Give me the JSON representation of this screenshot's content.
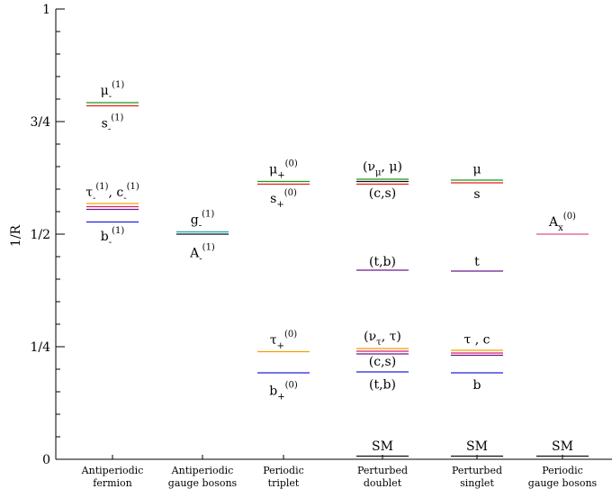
{
  "chart_data": {
    "type": "level-diagram",
    "ylabel": "1/R",
    "ylim": [
      0,
      1
    ],
    "yticks": [
      {
        "value": 0,
        "label": "0"
      },
      {
        "value": 0.25,
        "label": "1/4"
      },
      {
        "value": 0.5,
        "label": "1/2"
      },
      {
        "value": 0.75,
        "label": "3/4"
      },
      {
        "value": 1,
        "label": "1"
      }
    ],
    "minor_tick_step": 0.05,
    "grid": false,
    "columns": [
      {
        "label_line1": "Antiperiodic",
        "label_line2": "fermion",
        "levels": [
          {
            "y": 0.792,
            "color": "#1a9a1a"
          },
          {
            "y": 0.785,
            "color": "#e0201a"
          },
          {
            "y": 0.568,
            "color": "#f5a000"
          },
          {
            "y": 0.561,
            "color": "#d0206a"
          },
          {
            "y": 0.555,
            "color": "#6a1a8a"
          },
          {
            "y": 0.527,
            "color": "#2020e0"
          }
        ],
        "annotations": [
          {
            "text": "μ",
            "sub": "-",
            "sup": "(1)",
            "y": 0.81
          },
          {
            "text": "s",
            "sub": "-",
            "sup": "(1)",
            "y": 0.737
          },
          {
            "text": "τ",
            "sub": "-",
            "sup": "(1)",
            "text2": ", c",
            "sub2": "-",
            "sup2": "(1)",
            "y": 0.584
          },
          {
            "text": "b",
            "sub": "-",
            "sup": "(1)",
            "y": 0.486
          }
        ]
      },
      {
        "label_line1": "Antiperiodic",
        "label_line2": "gauge bosons",
        "levels": [
          {
            "y": 0.505,
            "color": "#00b0b0"
          },
          {
            "y": 0.5,
            "color": "#101010"
          }
        ],
        "annotations": [
          {
            "text": "g",
            "sub": "-",
            "sup": "(1)",
            "y": 0.523
          },
          {
            "text": "A",
            "sub": "-",
            "sup": "(1)",
            "y": 0.449
          }
        ]
      },
      {
        "label_line1": "Periodic",
        "label_line2": "triplet",
        "levels": [
          {
            "y": 0.617,
            "color": "#1a9a1a"
          },
          {
            "y": 0.611,
            "color": "#e0201a"
          },
          {
            "y": 0.239,
            "color": "#f5a000"
          },
          {
            "y": 0.192,
            "color": "#2020e0"
          }
        ],
        "annotations": [
          {
            "text": "μ",
            "sub": "+",
            "sup": "(0)",
            "y": 0.635
          },
          {
            "text": "s",
            "sub": "+",
            "sup": "(0)",
            "y": 0.57
          },
          {
            "text": "τ",
            "sub": "+",
            "sup": "(0)",
            "y": 0.256
          },
          {
            "text": "b",
            "sub": "+",
            "sup": "(0)",
            "y": 0.143
          }
        ]
      },
      {
        "label_line1": "Perturbed",
        "label_line2": "doublet",
        "levels": [
          {
            "y": 0.622,
            "color": "#1a9a1a"
          },
          {
            "y": 0.617,
            "color": "#101010"
          },
          {
            "y": 0.611,
            "color": "#e0201a"
          },
          {
            "y": 0.42,
            "color": "#6a1a8a"
          },
          {
            "y": 0.246,
            "color": "#f5a000"
          },
          {
            "y": 0.24,
            "color": "#d0206a"
          },
          {
            "y": 0.234,
            "color": "#6a1a8a"
          },
          {
            "y": 0.194,
            "color": "#2020e0"
          },
          {
            "y": 0.007,
            "color": "#101010"
          }
        ],
        "annotations": [
          {
            "text": "(ν",
            "sub": "μ",
            "sup": "",
            "text2": ", μ)",
            "y": 0.641
          },
          {
            "text": "(c,s)",
            "y": 0.582
          },
          {
            "text": "(t,b)",
            "y": 0.43
          },
          {
            "text": "(ν",
            "sub": "τ",
            "sup": "",
            "text2": ", τ)",
            "y": 0.264
          },
          {
            "text": "(c,s)",
            "y": 0.208
          },
          {
            "text": "(t,b)",
            "y": 0.157
          },
          {
            "text": "SM",
            "y": 0.02
          }
        ]
      },
      {
        "label_line1": "Perturbed",
        "label_line2": "singlet",
        "levels": [
          {
            "y": 0.62,
            "color": "#1a9a1a"
          },
          {
            "y": 0.614,
            "color": "#e0201a"
          },
          {
            "y": 0.418,
            "color": "#6a1a8a"
          },
          {
            "y": 0.242,
            "color": "#f5a000"
          },
          {
            "y": 0.236,
            "color": "#d0206a"
          },
          {
            "y": 0.231,
            "color": "#6a1a8a"
          },
          {
            "y": 0.192,
            "color": "#2020e0"
          },
          {
            "y": 0.007,
            "color": "#101010"
          }
        ],
        "annotations": [
          {
            "text": "μ",
            "y": 0.635
          },
          {
            "text": "s",
            "y": 0.58
          },
          {
            "text": "t",
            "y": 0.43
          },
          {
            "text": "τ , c",
            "y": 0.257
          },
          {
            "text": "b",
            "y": 0.156
          },
          {
            "text": "SM",
            "y": 0.02
          }
        ]
      },
      {
        "label_line1": "Periodic",
        "label_line2": "gauge bosons",
        "levels": [
          {
            "y": 0.5,
            "color": "#e05090"
          },
          {
            "y": 0.007,
            "color": "#101010"
          }
        ],
        "annotations": [
          {
            "text": "A",
            "sub": "x",
            "sup": "(0)",
            "y": 0.518
          },
          {
            "text": "SM",
            "y": 0.02
          }
        ]
      }
    ]
  }
}
